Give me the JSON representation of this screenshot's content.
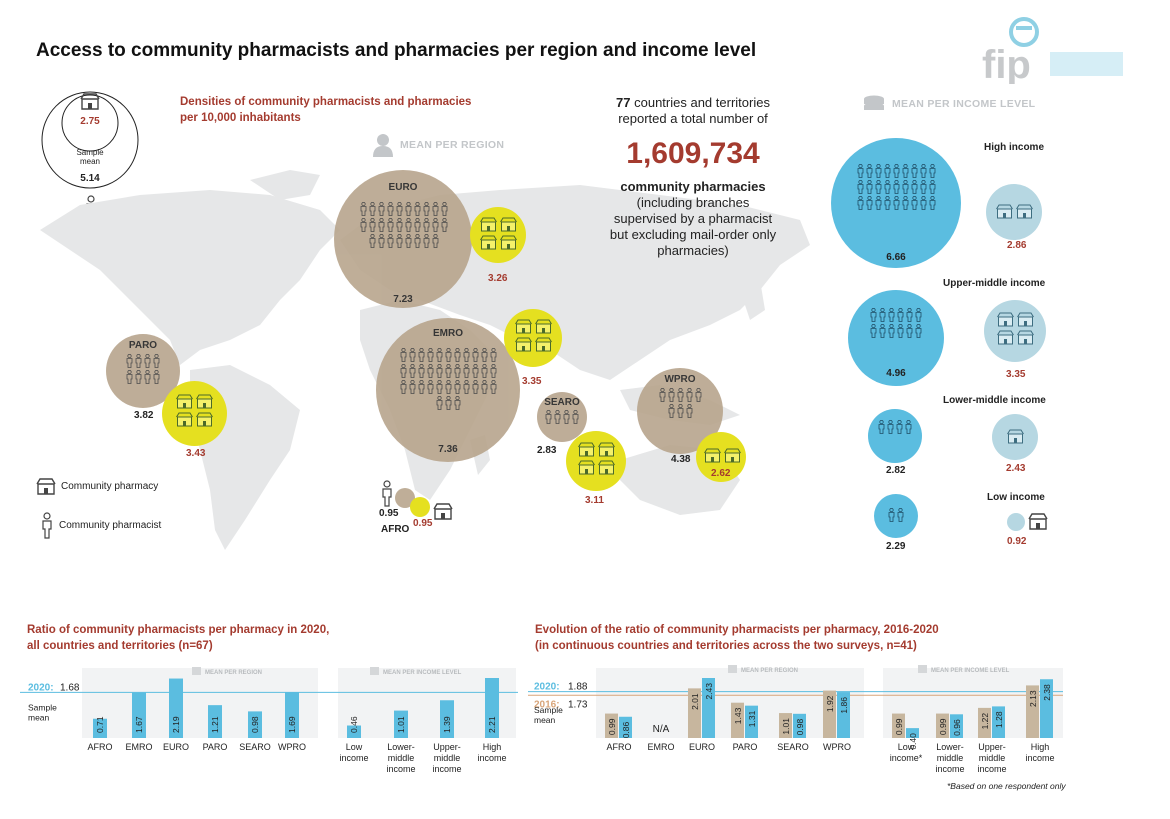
{
  "title": "Access to community pharmacists and pharmacies per region and income level",
  "colors": {
    "accent_red": "#a43b2f",
    "tan": "#b8a58d",
    "yellow": "#e5e020",
    "blue": "#5bbde0",
    "light_blue": "#b6d7e2"
  },
  "logo": {
    "text": "fip"
  },
  "map_panel": {
    "subtitle_line1": "Densities of community pharmacists and pharmacies",
    "subtitle_line2": "per 10,000 inhabitants",
    "mean_per_region": "MEAN PER REGION",
    "mean_per_income": "MEAN PER INCOME LEVEL",
    "sample_mean": {
      "label_line1": "Sample",
      "label_line2": "mean",
      "pharmacists": "5.14",
      "pharmacies": "2.75"
    },
    "legend": {
      "pharmacy": "Community pharmacy",
      "pharmacist": "Community pharmacist"
    },
    "stat": {
      "count": "77",
      "line1_rest": " countries and territories",
      "line2": "reported a total number of",
      "big_number": "1,609,734",
      "bold_label": "community pharmacies",
      "note_line1": "(including branches",
      "note_line2": "supervised by a pharmacist",
      "note_line3": "but excluding mail-order only",
      "note_line4": "pharmacies)"
    },
    "regions": [
      {
        "name": "EURO",
        "pharmacists": "7.23",
        "pharmacies": "3.26"
      },
      {
        "name": "EMRO",
        "pharmacists": "7.36",
        "pharmacies": "3.35"
      },
      {
        "name": "PARO",
        "pharmacists": "3.82",
        "pharmacies": "3.43"
      },
      {
        "name": "SEARO",
        "pharmacists": "2.83",
        "pharmacies": "3.11"
      },
      {
        "name": "WPRO",
        "pharmacists": "4.38",
        "pharmacies": "2.62"
      },
      {
        "name": "AFRO",
        "pharmacists": "0.95",
        "pharmacies": "0.95"
      }
    ],
    "income_levels": [
      {
        "name": "High income",
        "pharmacists": "6.66",
        "pharmacies": "2.86"
      },
      {
        "name": "Upper-middle income",
        "pharmacists": "4.96",
        "pharmacies": "3.35"
      },
      {
        "name": "Lower-middle income",
        "pharmacists": "2.82",
        "pharmacies": "2.43"
      },
      {
        "name": "Low income",
        "pharmacists": "2.29",
        "pharmacies": "0.92"
      }
    ]
  },
  "chart_data": [
    {
      "type": "bar",
      "title": "Ratio of community pharmacists per pharmacy in 2020, all countries and territories (n=67)",
      "title_line1": "Ratio of community pharmacists per pharmacy in 2020,",
      "title_line2": "all countries and territories (n=67)",
      "group_labels": [
        "MEAN PER REGION",
        "MEAN PER INCOME LEVEL"
      ],
      "reference": {
        "label_year": "2020:",
        "value": 1.68,
        "label_value": "1.68",
        "label_sample": "Sample",
        "label_mean": "mean"
      },
      "categories": [
        "AFRO",
        "EMRO",
        "EURO",
        "PARO",
        "SEARO",
        "WPRO",
        "Low income",
        "Lower-middle income",
        "Upper-middle income",
        "High income"
      ],
      "category_labels": [
        [
          "AFRO"
        ],
        [
          "EMRO"
        ],
        [
          "EURO"
        ],
        [
          "PARO"
        ],
        [
          "SEARO"
        ],
        [
          "WPRO"
        ],
        [
          "Low",
          "income"
        ],
        [
          "Lower-",
          "middle",
          "income"
        ],
        [
          "Upper-",
          "middle",
          "income"
        ],
        [
          "High",
          "income"
        ]
      ],
      "series": [
        {
          "name": "2020",
          "values": [
            0.71,
            1.67,
            2.19,
            1.21,
            0.98,
            1.69,
            0.46,
            1.01,
            1.39,
            2.21
          ]
        }
      ],
      "ylim": [
        0,
        2.4
      ]
    },
    {
      "type": "bar",
      "title": "Evolution of the ratio of community pharmacists per pharmacy, 2016-2020 (in continuous countries and territories across the two surveys, n=41)",
      "title_line1": "Evolution of the ratio of community pharmacists per pharmacy, 2016-2020",
      "title_line2": "(in continuous countries and territories across the two surveys, n=41)",
      "group_labels": [
        "MEAN PER REGION",
        "MEAN PER INCOME LEVEL"
      ],
      "reference": [
        {
          "label_year": "2020:",
          "value": 1.88,
          "label_value": "1.88"
        },
        {
          "label_year": "2016:",
          "value": 1.73,
          "label_value": "1.73"
        }
      ],
      "reference_labels": {
        "sample": "Sample",
        "mean": "mean"
      },
      "categories": [
        "AFRO",
        "EMRO",
        "EURO",
        "PARO",
        "SEARO",
        "WPRO",
        "Low income*",
        "Lower-middle income",
        "Upper-middle income",
        "High income"
      ],
      "category_labels": [
        [
          "AFRO"
        ],
        [
          "EMRO"
        ],
        [
          "EURO"
        ],
        [
          "PARO"
        ],
        [
          "SEARO"
        ],
        [
          "WPRO"
        ],
        [
          "Low",
          "income*"
        ],
        [
          "Lower-",
          "middle",
          "income"
        ],
        [
          "Upper-",
          "middle",
          "income"
        ],
        [
          "High",
          "income"
        ]
      ],
      "na_label": "N/A",
      "series": [
        {
          "name": "2016",
          "values": [
            0.99,
            null,
            2.01,
            1.43,
            1.01,
            1.92,
            0.99,
            0.99,
            1.22,
            2.13
          ]
        },
        {
          "name": "2020",
          "values": [
            0.86,
            null,
            2.43,
            1.31,
            0.98,
            1.86,
            0.4,
            0.96,
            1.28,
            2.38
          ]
        }
      ],
      "ylim": [
        0,
        2.5
      ],
      "footnote": "*Based on one respondent only"
    }
  ]
}
